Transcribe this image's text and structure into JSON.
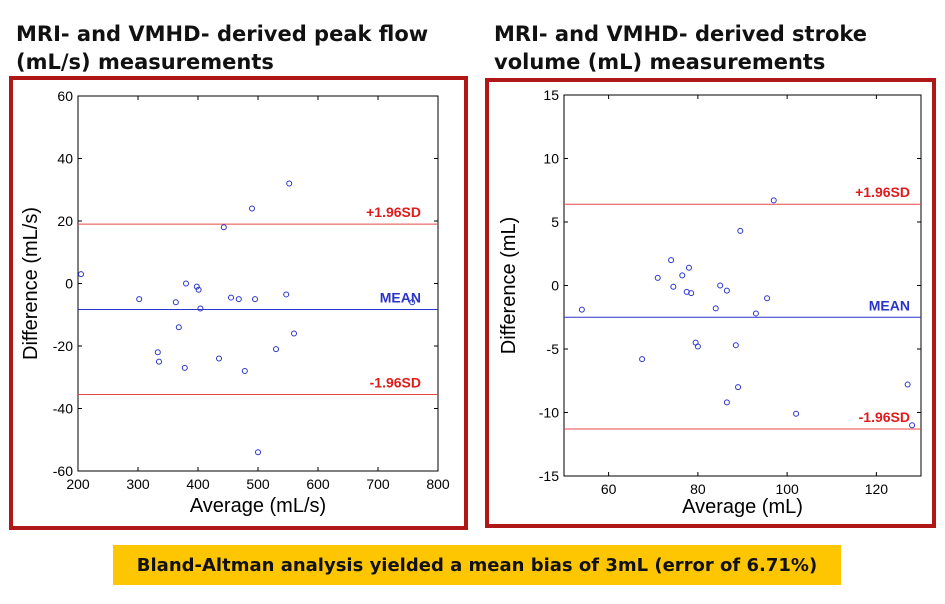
{
  "titles": {
    "left": "MRI- and VMHD- derived peak flow\n(mL/s) measurements",
    "right": "MRI- and VMHD- derived stroke\nvolume (mL) measurements"
  },
  "banner": "Bland-Altman analysis yielded a mean bias of 3mL (error of 6.71%)",
  "colors": {
    "frame": "#b01818",
    "limit_line": "#e8484a",
    "limit_text": "#e01b1b",
    "mean_line": "#2b34c9",
    "mean_text": "#2b34c9",
    "points": "#2b34c9",
    "banner_bg": "#fec601"
  },
  "chart_data": [
    {
      "type": "scatter",
      "title": "MRI- and VMHD- derived peak flow (mL/s) measurements",
      "xlabel": "Average (mL/s)",
      "ylabel": "Difference (mL/s)",
      "xlim": [
        200,
        800
      ],
      "ylim": [
        -60,
        60
      ],
      "xticks": [
        200,
        300,
        400,
        500,
        600,
        700,
        800
      ],
      "yticks": [
        -60,
        -40,
        -20,
        0,
        20,
        40,
        60
      ],
      "grid": false,
      "lines": [
        {
          "label": "+1.96SD",
          "y": 19,
          "role": "limit"
        },
        {
          "label": "MEAN",
          "y": -8.3,
          "role": "mean"
        },
        {
          "label": "-1.96SD",
          "y": -35.5,
          "role": "limit"
        }
      ],
      "points": [
        [
          205,
          3
        ],
        [
          302,
          -5
        ],
        [
          333,
          -22
        ],
        [
          335,
          -25
        ],
        [
          363,
          -6
        ],
        [
          368,
          -14
        ],
        [
          378,
          -27
        ],
        [
          380,
          0
        ],
        [
          398,
          -1
        ],
        [
          401,
          -2
        ],
        [
          404,
          -8
        ],
        [
          435,
          -24
        ],
        [
          443,
          18
        ],
        [
          455,
          -4.5
        ],
        [
          468,
          -5
        ],
        [
          478,
          -28
        ],
        [
          490,
          24
        ],
        [
          495,
          -5
        ],
        [
          500,
          -54
        ],
        [
          530,
          -21
        ],
        [
          547,
          -3.5
        ],
        [
          552,
          32
        ],
        [
          560,
          -16
        ],
        [
          757,
          -6
        ]
      ]
    },
    {
      "type": "scatter",
      "title": "MRI- and VMHD- derived stroke volume (mL) measurements",
      "xlabel": "Average (mL)",
      "ylabel": "Difference (mL)",
      "xlim": [
        50,
        130
      ],
      "ylim": [
        -15,
        15
      ],
      "xticks": [
        60,
        80,
        100,
        120
      ],
      "yticks": [
        -15,
        -10,
        -5,
        0,
        5,
        10,
        15
      ],
      "grid": false,
      "lines": [
        {
          "label": "+1.96SD",
          "y": 6.4,
          "role": "limit"
        },
        {
          "label": "MEAN",
          "y": -2.5,
          "role": "mean"
        },
        {
          "label": "-1.96SD",
          "y": -11.3,
          "role": "limit"
        }
      ],
      "points": [
        [
          54,
          -1.9
        ],
        [
          67.5,
          -5.8
        ],
        [
          71,
          0.6
        ],
        [
          74,
          2
        ],
        [
          74.5,
          -0.1
        ],
        [
          76.5,
          0.8
        ],
        [
          77.5,
          -0.5
        ],
        [
          78,
          1.4
        ],
        [
          78.5,
          -0.6
        ],
        [
          79.5,
          -4.5
        ],
        [
          80,
          -4.8
        ],
        [
          84,
          -1.8
        ],
        [
          85,
          0
        ],
        [
          86.5,
          -9.2
        ],
        [
          86.5,
          -0.4
        ],
        [
          88.5,
          -4.7
        ],
        [
          89,
          -8
        ],
        [
          89.5,
          4.3
        ],
        [
          93,
          -2.2
        ],
        [
          95.5,
          -1
        ],
        [
          97,
          6.7
        ],
        [
          102,
          -10.1
        ],
        [
          127,
          -7.8
        ],
        [
          128,
          -11
        ]
      ]
    }
  ]
}
